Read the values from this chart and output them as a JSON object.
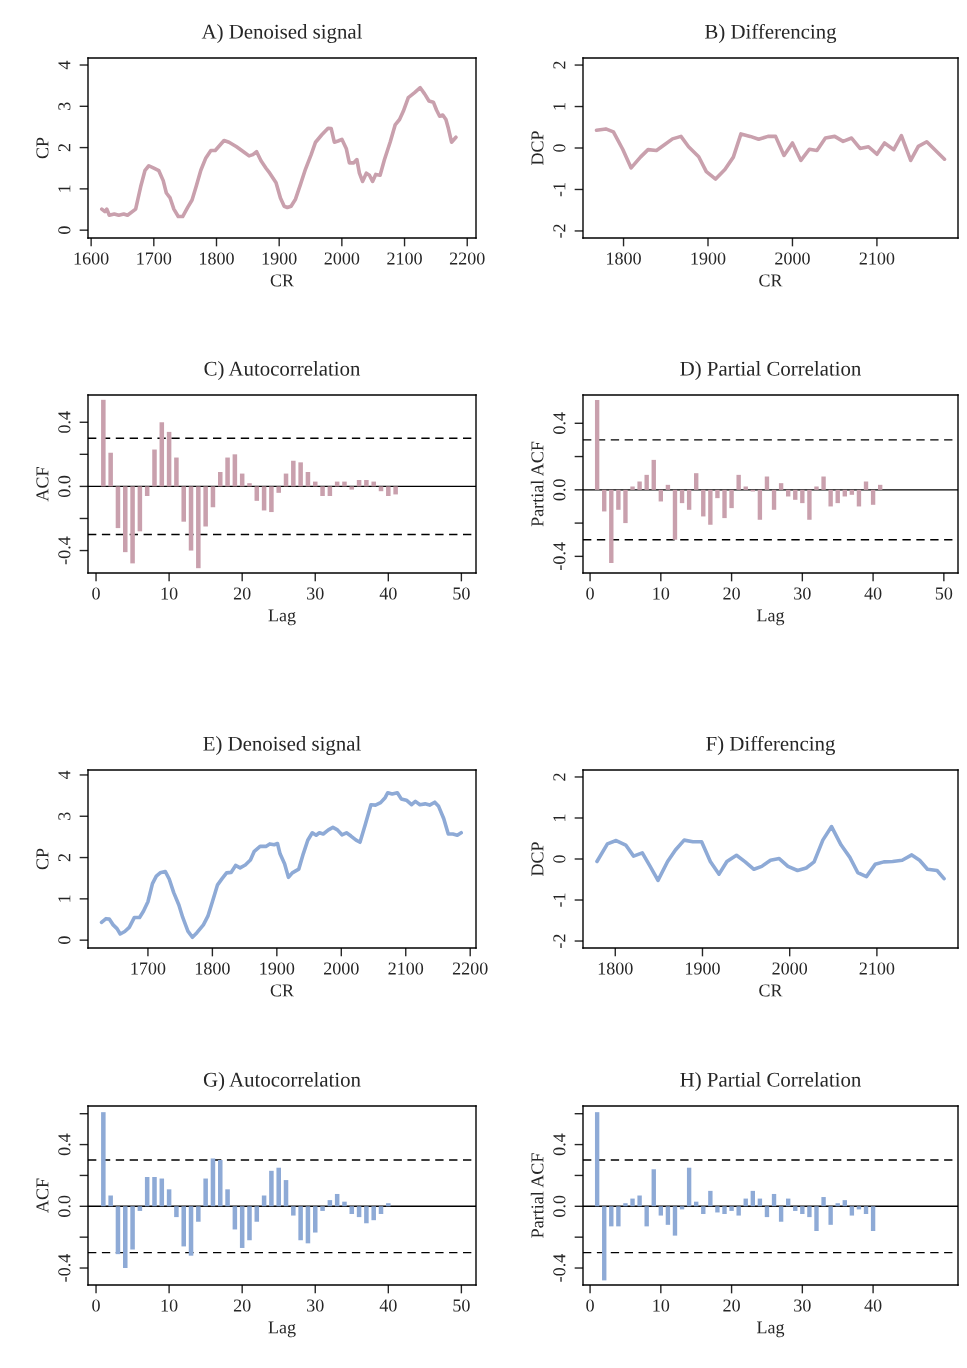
{
  "chart_data": [
    {
      "type": "line",
      "title": "A) Denoised signal",
      "xlabel": "CR",
      "ylabel": "CP",
      "color": "#c9a0ad",
      "xlim": [
        1595,
        2214
      ],
      "ylim": [
        -0.19,
        4.17
      ],
      "xticks": [
        1600,
        1700,
        1800,
        1900,
        2000,
        2100,
        2200
      ],
      "yticks": [
        0,
        1,
        2,
        3,
        4
      ],
      "x": [
        1617,
        1622,
        1625,
        1629,
        1637,
        1644,
        1652,
        1658,
        1671,
        1679,
        1686,
        1692,
        1700,
        1708,
        1715,
        1720,
        1726,
        1732,
        1739,
        1746,
        1754,
        1761,
        1768,
        1775,
        1783,
        1791,
        1798,
        1805,
        1812,
        1820,
        1832,
        1843,
        1852,
        1858,
        1864,
        1871,
        1879,
        1885,
        1895,
        1902,
        1908,
        1913,
        1919,
        1926,
        1934,
        1942,
        1951,
        1958,
        1968,
        1978,
        1983,
        1988,
        1994,
        2000,
        2007,
        2012,
        2019,
        2024,
        2028,
        2033,
        2039,
        2044,
        2049,
        2054,
        2061,
        2068,
        2077,
        2085,
        2092,
        2098,
        2106,
        2116,
        2125,
        2132,
        2139,
        2146,
        2151,
        2156,
        2161,
        2166,
        2170,
        2175,
        2182
      ],
      "values": [
        0.51,
        0.45,
        0.51,
        0.36,
        0.39,
        0.36,
        0.39,
        0.36,
        0.51,
        1.05,
        1.45,
        1.56,
        1.5,
        1.44,
        1.2,
        0.9,
        0.78,
        0.51,
        0.33,
        0.33,
        0.55,
        0.73,
        1.08,
        1.45,
        1.75,
        1.93,
        1.93,
        2.05,
        2.17,
        2.13,
        2.02,
        1.9,
        1.8,
        1.83,
        1.9,
        1.68,
        1.5,
        1.38,
        1.15,
        0.78,
        0.58,
        0.55,
        0.58,
        0.75,
        1.11,
        1.48,
        1.83,
        2.13,
        2.31,
        2.47,
        2.46,
        2.13,
        2.16,
        2.2,
        1.98,
        1.63,
        1.63,
        1.71,
        1.38,
        1.18,
        1.38,
        1.33,
        1.18,
        1.35,
        1.33,
        1.71,
        2.13,
        2.55,
        2.68,
        2.88,
        3.21,
        3.33,
        3.45,
        3.3,
        3.13,
        3.1,
        2.91,
        2.76,
        2.79,
        2.68,
        2.46,
        2.13,
        2.25
      ]
    },
    {
      "type": "line",
      "title": "B) Differencing",
      "xlabel": "CR",
      "ylabel": "DCP",
      "color": "#c9a0ad",
      "xlim": [
        1752,
        2196
      ],
      "ylim": [
        -2.17,
        2.17
      ],
      "xticks": [
        1800,
        1900,
        2000,
        2100
      ],
      "yticks": [
        -2,
        -1,
        0,
        1,
        2
      ],
      "x": [
        1768,
        1779,
        1788,
        1799,
        1809,
        1820,
        1829,
        1839,
        1848,
        1858,
        1868,
        1877,
        1889,
        1898,
        1909,
        1920,
        1930,
        1939,
        1950,
        1960,
        1971,
        1980,
        1990,
        2000,
        2010,
        2020,
        2029,
        2039,
        2050,
        2060,
        2070,
        2080,
        2090,
        2100,
        2109,
        2120,
        2129,
        2140,
        2149,
        2159,
        2180
      ],
      "values": [
        0.43,
        0.46,
        0.39,
        -0.03,
        -0.48,
        -0.22,
        -0.04,
        -0.06,
        0.07,
        0.22,
        0.28,
        0.03,
        -0.21,
        -0.57,
        -0.75,
        -0.52,
        -0.22,
        0.34,
        0.28,
        0.21,
        0.28,
        0.28,
        -0.18,
        0.12,
        -0.3,
        -0.03,
        -0.06,
        0.24,
        0.28,
        0.16,
        0.24,
        -0.01,
        0.03,
        -0.15,
        0.12,
        -0.04,
        0.3,
        -0.3,
        0.04,
        0.15,
        -0.27
      ]
    },
    {
      "type": "bar",
      "title": "C) Autocorrelation",
      "xlabel": "Lag",
      "ylabel": "ACF",
      "color": "#c9a0ad",
      "xlim": [
        -1.1,
        52
      ],
      "ylim": [
        -0.54,
        0.57
      ],
      "xticks": [
        0,
        10,
        20,
        30,
        40,
        50
      ],
      "yticks": [
        -0.4,
        {
          "value": -0.2,
          "label": null
        },
        {
          "value": 0,
          "label": "0.0"
        },
        {
          "value": 0.2,
          "label": null
        },
        0.4
      ],
      "ref_lines": [
        {
          "axis": "y",
          "value": 0,
          "color": "#000000",
          "line_style": "solid"
        },
        {
          "axis": "y",
          "value": 0.3,
          "color": "#000000",
          "line_style": "dashed"
        },
        {
          "axis": "y",
          "value": -0.3,
          "color": "#000000",
          "line_style": "dashed"
        }
      ],
      "x": [
        1,
        2,
        3,
        4,
        5,
        6,
        7,
        8,
        9,
        10,
        11,
        12,
        13,
        14,
        15,
        16,
        17,
        18,
        19,
        20,
        21,
        22,
        23,
        24,
        25,
        26,
        27,
        28,
        29,
        30,
        31,
        32,
        33,
        34,
        35,
        36,
        37,
        38,
        39,
        40,
        41
      ],
      "values": [
        0.54,
        0.21,
        -0.26,
        -0.41,
        -0.48,
        -0.28,
        -0.06,
        0.23,
        0.4,
        0.34,
        0.18,
        -0.22,
        -0.4,
        -0.51,
        -0.25,
        -0.13,
        0.09,
        0.18,
        0.2,
        0.08,
        0.02,
        -0.09,
        -0.15,
        -0.16,
        -0.04,
        0.08,
        0.16,
        0.15,
        0.09,
        0.03,
        -0.06,
        -0.06,
        0.03,
        0.03,
        -0.02,
        0.04,
        0.04,
        0.03,
        -0.03,
        -0.06,
        -0.05
      ]
    },
    {
      "type": "bar",
      "title": "D) Partial Correlation",
      "xlabel": "Lag",
      "ylabel": "Partial ACF",
      "color": "#c9a0ad",
      "xlim": [
        -1,
        52
      ],
      "ylim": [
        -0.5,
        0.57
      ],
      "xticks": [
        0,
        10,
        20,
        30,
        40,
        50
      ],
      "yticks": [
        -0.4,
        {
          "value": -0.2,
          "label": null
        },
        {
          "value": 0,
          "label": "0.0"
        },
        {
          "value": 0.2,
          "label": null
        },
        0.4
      ],
      "ref_lines": [
        {
          "axis": "y",
          "value": 0,
          "color": "#000000",
          "line_style": "solid"
        },
        {
          "axis": "y",
          "value": 0.3,
          "color": "#000000",
          "line_style": "dashed"
        },
        {
          "axis": "y",
          "value": -0.3,
          "color": "#000000",
          "line_style": "dashed"
        }
      ],
      "x": [
        1,
        2,
        3,
        4,
        5,
        6,
        7,
        8,
        9,
        10,
        11,
        12,
        13,
        14,
        15,
        16,
        17,
        18,
        19,
        20,
        21,
        22,
        23,
        24,
        25,
        26,
        27,
        28,
        29,
        30,
        31,
        32,
        33,
        34,
        35,
        36,
        37,
        38,
        39,
        40,
        41
      ],
      "values": [
        0.54,
        -0.13,
        -0.44,
        -0.12,
        -0.2,
        0.02,
        0.05,
        0.09,
        0.18,
        -0.07,
        0.03,
        -0.3,
        -0.08,
        -0.12,
        0.1,
        -0.16,
        -0.21,
        -0.05,
        -0.17,
        -0.11,
        0.09,
        0.02,
        -0.01,
        -0.18,
        0.08,
        -0.12,
        0.04,
        -0.04,
        -0.06,
        -0.08,
        -0.18,
        0.02,
        0.08,
        -0.1,
        -0.08,
        -0.04,
        -0.03,
        -0.1,
        0.05,
        -0.09,
        0.03
      ]
    },
    {
      "type": "line",
      "title": "E) Denoised signal",
      "xlabel": "CR",
      "ylabel": "CP",
      "color": "#8eaad6",
      "xlim": [
        1607,
        2209
      ],
      "ylim": [
        -0.19,
        4.12
      ],
      "xticks": [
        1700,
        1800,
        1900,
        2000,
        2100,
        2200
      ],
      "yticks": [
        0,
        1,
        2,
        3,
        4
      ],
      "x": [
        1628,
        1635,
        1640,
        1646,
        1652,
        1657,
        1664,
        1671,
        1679,
        1687,
        1693,
        1700,
        1707,
        1713,
        1719,
        1727,
        1733,
        1740,
        1748,
        1754,
        1762,
        1769,
        1776,
        1786,
        1793,
        1800,
        1808,
        1815,
        1822,
        1829,
        1836,
        1843,
        1851,
        1859,
        1865,
        1874,
        1883,
        1889,
        1896,
        1901,
        1905,
        1912,
        1918,
        1924,
        1934,
        1941,
        1948,
        1955,
        1961,
        1966,
        1972,
        1980,
        1987,
        1994,
        2001,
        2008,
        2015,
        2023,
        2029,
        2037,
        2046,
        2053,
        2061,
        2068,
        2072,
        2079,
        2087,
        2093,
        2101,
        2109,
        2115,
        2122,
        2130,
        2137,
        2145,
        2151,
        2159,
        2166,
        2173,
        2180,
        2186
      ],
      "values": [
        0.43,
        0.52,
        0.51,
        0.37,
        0.28,
        0.15,
        0.21,
        0.31,
        0.55,
        0.55,
        0.7,
        0.93,
        1.37,
        1.55,
        1.63,
        1.66,
        1.48,
        1.15,
        0.85,
        0.55,
        0.22,
        0.07,
        0.18,
        0.37,
        0.58,
        0.93,
        1.34,
        1.49,
        1.63,
        1.64,
        1.81,
        1.75,
        1.82,
        1.94,
        2.15,
        2.27,
        2.27,
        2.33,
        2.31,
        2.34,
        2.09,
        1.85,
        1.52,
        1.63,
        1.72,
        2.09,
        2.42,
        2.6,
        2.54,
        2.6,
        2.57,
        2.67,
        2.73,
        2.67,
        2.55,
        2.6,
        2.52,
        2.42,
        2.37,
        2.79,
        3.28,
        3.27,
        3.33,
        3.45,
        3.57,
        3.54,
        3.57,
        3.42,
        3.39,
        3.28,
        3.36,
        3.28,
        3.3,
        3.27,
        3.34,
        3.24,
        2.94,
        2.57,
        2.57,
        2.54,
        2.6
      ]
    },
    {
      "type": "line",
      "title": "F) Differencing",
      "xlabel": "CR",
      "ylabel": "DCP",
      "color": "#8eaad6",
      "xlim": [
        1763,
        2193
      ],
      "ylim": [
        -2.17,
        2.17
      ],
      "xticks": [
        1800,
        1900,
        2000,
        2100
      ],
      "yticks": [
        -2,
        -1,
        0,
        1,
        2
      ],
      "x": [
        1779,
        1791,
        1801,
        1812,
        1821,
        1831,
        1840,
        1849,
        1860,
        1869,
        1879,
        1889,
        1899,
        1909,
        1919,
        1928,
        1939,
        1949,
        1959,
        1968,
        1978,
        1988,
        1998,
        2009,
        2019,
        2028,
        2038,
        2048,
        2059,
        2069,
        2078,
        2088,
        2098,
        2108,
        2118,
        2129,
        2140,
        2149,
        2158,
        2169,
        2177
      ],
      "values": [
        -0.06,
        0.37,
        0.45,
        0.34,
        0.07,
        0.15,
        -0.18,
        -0.52,
        -0.06,
        0.22,
        0.46,
        0.42,
        0.42,
        -0.06,
        -0.37,
        -0.06,
        0.09,
        -0.07,
        -0.25,
        -0.18,
        -0.03,
        0.01,
        -0.18,
        -0.28,
        -0.22,
        -0.07,
        0.46,
        0.79,
        0.34,
        0.04,
        -0.33,
        -0.43,
        -0.13,
        -0.07,
        -0.06,
        -0.03,
        0.1,
        -0.03,
        -0.25,
        -0.28,
        -0.48
      ]
    },
    {
      "type": "bar",
      "title": "G) Autocorrelation",
      "xlabel": "Lag",
      "ylabel": "ACF",
      "color": "#8eaad6",
      "xlim": [
        -1.1,
        52
      ],
      "ylim": [
        -0.51,
        0.65
      ],
      "xticks": [
        0,
        10,
        20,
        30,
        40,
        50
      ],
      "yticks": [
        -0.4,
        {
          "value": -0.2,
          "label": null
        },
        {
          "value": 0,
          "label": "0.0"
        },
        {
          "value": 0.2,
          "label": null
        },
        0.4,
        {
          "value": 0.6,
          "label": null
        }
      ],
      "ref_lines": [
        {
          "axis": "y",
          "value": 0,
          "color": "#000000",
          "line_style": "solid"
        },
        {
          "axis": "y",
          "value": 0.3,
          "color": "#000000",
          "line_style": "dashed"
        },
        {
          "axis": "y",
          "value": -0.3,
          "color": "#000000",
          "line_style": "dashed"
        }
      ],
      "x": [
        1,
        2,
        3,
        4,
        5,
        6,
        7,
        8,
        9,
        10,
        11,
        12,
        13,
        14,
        15,
        16,
        17,
        18,
        19,
        20,
        21,
        22,
        23,
        24,
        25,
        26,
        27,
        28,
        29,
        30,
        31,
        32,
        33,
        34,
        35,
        36,
        37,
        38,
        39,
        40
      ],
      "values": [
        0.61,
        0.07,
        -0.31,
        -0.4,
        -0.28,
        -0.03,
        0.19,
        0.19,
        0.18,
        0.11,
        -0.07,
        -0.26,
        -0.32,
        -0.1,
        0.18,
        0.31,
        0.3,
        0.11,
        -0.15,
        -0.27,
        -0.22,
        -0.1,
        0.07,
        0.23,
        0.25,
        0.17,
        -0.06,
        -0.22,
        -0.24,
        -0.17,
        -0.03,
        0.04,
        0.08,
        0.03,
        -0.05,
        -0.07,
        -0.11,
        -0.09,
        -0.05,
        0.02
      ]
    },
    {
      "type": "bar",
      "title": "H) Partial Correlation",
      "xlabel": "Lag",
      "ylabel": "Partial ACF",
      "color": "#8eaad6",
      "xlim": [
        -1,
        52
      ],
      "ylim": [
        -0.51,
        0.65
      ],
      "xticks": [
        0,
        10,
        20,
        30,
        40
      ],
      "yticks": [
        -0.4,
        {
          "value": -0.2,
          "label": null
        },
        {
          "value": 0,
          "label": "0.0"
        },
        {
          "value": 0.2,
          "label": null
        },
        0.4,
        {
          "value": 0.6,
          "label": null
        }
      ],
      "ref_lines": [
        {
          "axis": "y",
          "value": 0,
          "color": "#000000",
          "line_style": "solid"
        },
        {
          "axis": "y",
          "value": 0.3,
          "color": "#000000",
          "line_style": "dashed"
        },
        {
          "axis": "y",
          "value": -0.3,
          "color": "#000000",
          "line_style": "dashed"
        }
      ],
      "x": [
        1,
        2,
        3,
        4,
        5,
        6,
        7,
        8,
        9,
        10,
        11,
        12,
        13,
        14,
        15,
        16,
        17,
        18,
        19,
        20,
        21,
        22,
        23,
        24,
        25,
        26,
        27,
        28,
        29,
        30,
        31,
        32,
        33,
        34,
        35,
        36,
        37,
        38,
        39,
        40
      ],
      "values": [
        0.61,
        -0.48,
        -0.13,
        -0.13,
        0.02,
        0.05,
        0.07,
        -0.13,
        0.24,
        -0.06,
        -0.12,
        -0.19,
        -0.02,
        0.25,
        0.03,
        -0.05,
        0.1,
        -0.04,
        -0.05,
        -0.03,
        -0.06,
        0.05,
        0.1,
        0.05,
        -0.07,
        0.08,
        -0.1,
        0.05,
        -0.03,
        -0.05,
        -0.07,
        -0.16,
        0.06,
        -0.12,
        0.02,
        0.04,
        -0.06,
        -0.02,
        -0.05,
        -0.16
      ]
    }
  ]
}
